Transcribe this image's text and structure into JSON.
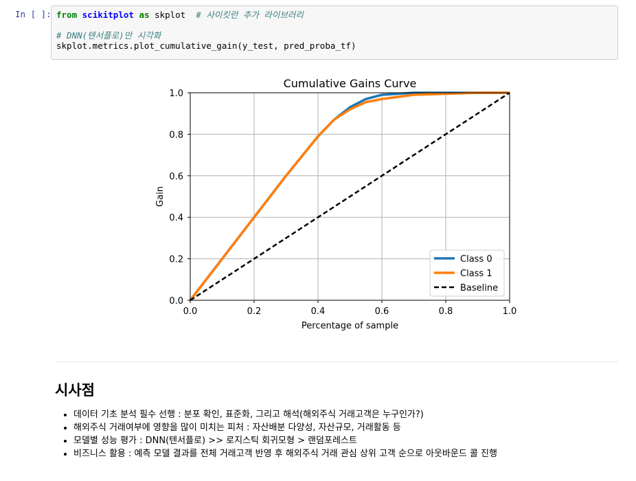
{
  "cell": {
    "prompt": "In [ ]:",
    "line1": {
      "kw_from": "from",
      "module": "scikitplot",
      "kw_as": "as",
      "alias": "skplot",
      "comment": "# 사이킷런 추가 라이브러리"
    },
    "line3": {
      "comment": "# DNN(텐서플로)만 시각화"
    },
    "line4": {
      "code": "skplot.metrics.plot_cumulative_gain(y_test, pred_proba_tf)"
    }
  },
  "chart_data": {
    "type": "line",
    "title": "Cumulative Gains Curve",
    "xlabel": "Percentage of sample",
    "ylabel": "Gain",
    "xlim": [
      0.0,
      1.0
    ],
    "ylim": [
      0.0,
      1.0
    ],
    "x_ticks": [
      "0.0",
      "0.2",
      "0.4",
      "0.6",
      "0.8",
      "1.0"
    ],
    "y_ticks": [
      "0.0",
      "0.2",
      "0.4",
      "0.6",
      "0.8",
      "1.0"
    ],
    "grid": true,
    "legend_position": "lower-right",
    "series": [
      {
        "name": "Class 0",
        "color": "#1f77b4",
        "style": "solid",
        "x": [
          0.0,
          0.1,
          0.2,
          0.3,
          0.4,
          0.45,
          0.5,
          0.55,
          0.6,
          0.65,
          0.7,
          0.8,
          0.9,
          1.0
        ],
        "y": [
          0.0,
          0.2,
          0.4,
          0.6,
          0.79,
          0.87,
          0.93,
          0.97,
          0.99,
          0.995,
          1.0,
          1.0,
          1.0,
          1.0
        ]
      },
      {
        "name": "Class 1",
        "color": "#ff7f0e",
        "style": "solid",
        "x": [
          0.0,
          0.1,
          0.2,
          0.3,
          0.4,
          0.45,
          0.5,
          0.55,
          0.6,
          0.65,
          0.7,
          0.8,
          0.9,
          1.0
        ],
        "y": [
          0.0,
          0.2,
          0.4,
          0.6,
          0.79,
          0.87,
          0.92,
          0.955,
          0.97,
          0.98,
          0.99,
          0.995,
          1.0,
          1.0
        ]
      },
      {
        "name": "Baseline",
        "color": "#000000",
        "style": "dashed",
        "x": [
          0.0,
          1.0
        ],
        "y": [
          0.0,
          1.0
        ]
      }
    ]
  },
  "markdown": {
    "heading": "시사점",
    "bullets": [
      "데이터 기초 분석 필수 선행 : 분포 확인, 표준화, 그리고 해석(해외주식 거래고객은 누구인가?)",
      "해외주식 거래여부에 영향을 많이 미치는 피처 : 자산배분 다양성, 자산규모, 거래활동 등",
      "모델별 성능 평가 : DNN(텐서플로) >> 로지스틱 회귀모형 > 랜덤포레스트",
      "비즈니스 활용 : 예측 모델 결과를 전체 거래고객 반영 후 해외주식 거래 관심 상위 고객 순으로 아웃바운드 콜 진행"
    ]
  }
}
